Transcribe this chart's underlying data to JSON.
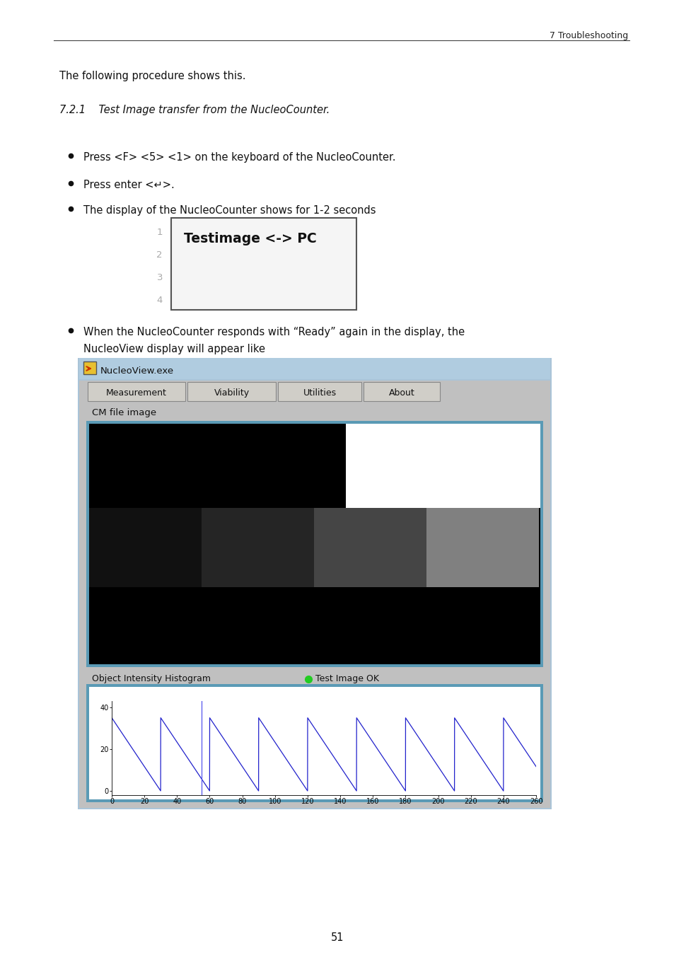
{
  "page_bg": "#ffffff",
  "header_text": "7 Troubleshooting",
  "body_text_intro": "The following procedure shows this.",
  "section_title": "7.2.1    Test Image transfer from the NucleoCounter.",
  "bullets": [
    "Press <F> <5> <1> on the keyboard of the NucleoCounter.",
    "Press enter <↵>.",
    "The display of the NucleoCounter shows for 1-2 seconds"
  ],
  "bullet4_line1": "When the NucleoCounter responds with “Ready” again in the display, the",
  "bullet4_line2": "NucleoView display will appear like",
  "display_box_lines": [
    "1",
    "2",
    "3",
    "4"
  ],
  "display_box_bold_text": "Testimage <-> PC",
  "page_number": "51",
  "nucleoview_title": "NucleoView.exe",
  "tab_labels": [
    "Measurement",
    "Viability",
    "Utilities",
    "About"
  ],
  "cm_label": "CM file image",
  "histogram_label": "Object Intensity Histogram",
  "test_image_ok": "Test Image OK",
  "img_gray_colors": [
    "#111111",
    "#252525",
    "#454545",
    "#808080"
  ],
  "colors": {
    "window_outer_border": "#4a8aab",
    "window_outer_fill": "#aac4d8",
    "titlebar_bg": "#b0cce0",
    "content_bg": "#c0c0c0",
    "tab_bg": "#d0cec8",
    "tab_border": "#909090",
    "image_panel_border": "#5a9ab5",
    "hist_panel_border": "#5a9ab5",
    "hist_bg": "#ffffff",
    "hist_line": "#2222cc",
    "hist_vert_line": "#5555ee",
    "green_dot": "#22cc22",
    "text_dark": "#111111",
    "white": "#ffffff",
    "black": "#000000"
  }
}
